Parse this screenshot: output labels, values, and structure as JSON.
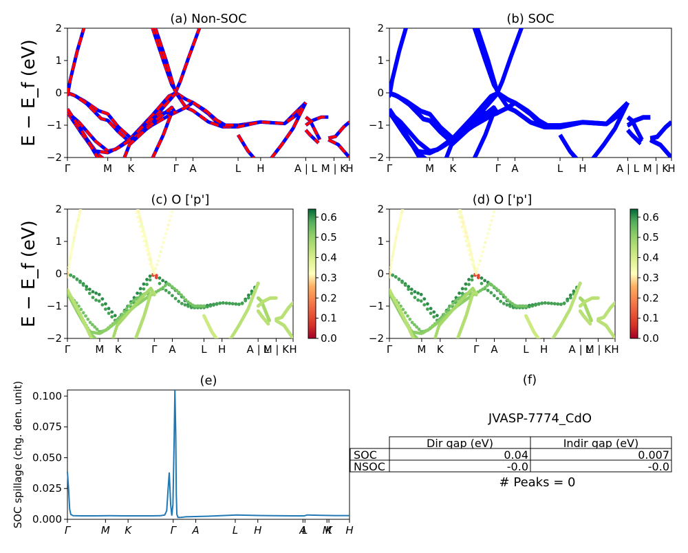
{
  "chart_data": [
    {
      "id": "a",
      "type": "line",
      "title": "(a) Non-SOC",
      "ylabel": "E − E_f (eV)",
      "ylim": [
        -2,
        2
      ],
      "y_ticks": [
        2,
        1,
        0,
        -1,
        -2
      ],
      "xlim": [
        0,
        1
      ],
      "x_ticks": [
        {
          "label": "Γ",
          "x": 0.0
        },
        {
          "label": "M",
          "x": 0.143
        },
        {
          "label": "K",
          "x": 0.225
        },
        {
          "label": "Γ",
          "x": 0.385
        },
        {
          "label": "A",
          "x": 0.445
        },
        {
          "label": "L",
          "x": 0.605
        },
        {
          "label": "H",
          "x": 0.685
        },
        {
          "label": "A | L",
          "x": 0.845
        },
        {
          "label": "M | K",
          "x": 0.945
        },
        {
          "label": "H",
          "x": 1.0
        }
      ],
      "series": [
        {
          "color": "#0000ff",
          "style": "solid",
          "bands": "up"
        },
        {
          "color": "#ff0000",
          "style": "dashed",
          "bands": "down"
        }
      ]
    },
    {
      "id": "b",
      "type": "line",
      "title": "(b) SOC",
      "ylim": [
        -2,
        2
      ],
      "y_ticks": [
        2,
        1,
        0,
        -1,
        -2
      ],
      "xlim": [
        0,
        1
      ],
      "x_ticks": [
        {
          "label": "Γ",
          "x": 0.0
        },
        {
          "label": "M",
          "x": 0.143
        },
        {
          "label": "K",
          "x": 0.225
        },
        {
          "label": "Γ",
          "x": 0.385
        },
        {
          "label": "A",
          "x": 0.445
        },
        {
          "label": "L",
          "x": 0.605
        },
        {
          "label": "H",
          "x": 0.685
        },
        {
          "label": "A | L",
          "x": 0.845
        },
        {
          "label": "M | K",
          "x": 0.945
        },
        {
          "label": "H",
          "x": 1.0
        }
      ],
      "series": [
        {
          "color": "#0000ff",
          "style": "solid"
        }
      ]
    },
    {
      "id": "c",
      "type": "scatter",
      "title": "(c)  O ['p']",
      "ylabel": "E − E_f (eV)",
      "ylim": [
        -2,
        2
      ],
      "y_ticks": [
        2,
        1,
        0,
        -1,
        -2
      ],
      "xlim": [
        0,
        1
      ],
      "x_ticks": [
        {
          "label": "Γ",
          "x": 0.0
        },
        {
          "label": "M",
          "x": 0.143
        },
        {
          "label": "K",
          "x": 0.225
        },
        {
          "label": "Γ",
          "x": 0.385
        },
        {
          "label": "A",
          "x": 0.465
        },
        {
          "label": "L",
          "x": 0.605
        },
        {
          "label": "H",
          "x": 0.685
        },
        {
          "label": "A | L",
          "x": 0.845
        },
        {
          "label": "M | K",
          "x": 0.925
        },
        {
          "label": "H",
          "x": 1.0
        }
      ],
      "colorbar": {
        "range": [
          0.0,
          0.64
        ],
        "ticks": [
          "0.0",
          "0.1",
          "0.2",
          "0.3",
          "0.4",
          "0.5",
          "0.6"
        ],
        "colormap": "RdYlGn"
      }
    },
    {
      "id": "d",
      "type": "scatter",
      "title": "(d) O ['p']",
      "ylim": [
        -2,
        2
      ],
      "y_ticks": [
        2,
        1,
        0,
        -1,
        -2
      ],
      "xlim": [
        0,
        1
      ],
      "x_ticks": [
        {
          "label": "Γ",
          "x": 0.0
        },
        {
          "label": "M",
          "x": 0.143
        },
        {
          "label": "K",
          "x": 0.225
        },
        {
          "label": "Γ",
          "x": 0.385
        },
        {
          "label": "A",
          "x": 0.465
        },
        {
          "label": "L",
          "x": 0.605
        },
        {
          "label": "H",
          "x": 0.685
        },
        {
          "label": "A | L",
          "x": 0.845
        },
        {
          "label": "M | K",
          "x": 0.925
        },
        {
          "label": "H",
          "x": 1.0
        }
      ],
      "colorbar": {
        "range": [
          0.0,
          0.64
        ],
        "ticks": [
          "0.0",
          "0.1",
          "0.2",
          "0.3",
          "0.4",
          "0.5",
          "0.6"
        ],
        "colormap": "RdYlGn"
      }
    },
    {
      "id": "e",
      "type": "line",
      "title": "(e)",
      "ylabel": "SOC spillage (chg. den. unit)",
      "ylim": [
        0,
        0.105
      ],
      "y_ticks": [
        "0.100",
        "0.075",
        "0.050",
        "0.025",
        "0.000"
      ],
      "xlim": [
        0,
        1
      ],
      "x_ticks": [
        {
          "label": "Γ",
          "x": 0.0
        },
        {
          "label": "M",
          "x": 0.135
        },
        {
          "label": "K",
          "x": 0.215
        },
        {
          "label": "Γ",
          "x": 0.375
        },
        {
          "label": "A",
          "x": 0.455
        },
        {
          "label": "L",
          "x": 0.595
        },
        {
          "label": "H",
          "x": 0.675
        },
        {
          "label": "A",
          "x": 0.835
        },
        {
          "label": "L",
          "x": 0.842
        },
        {
          "label": "M",
          "x": 0.92
        },
        {
          "label": "K",
          "x": 0.927
        },
        {
          "label": "H",
          "x": 1.0
        }
      ],
      "series": [
        {
          "color": "#1f77b4",
          "x": [
            0.0,
            0.004,
            0.008,
            0.012,
            0.02,
            0.05,
            0.1,
            0.15,
            0.2,
            0.25,
            0.3,
            0.33,
            0.345,
            0.352,
            0.357,
            0.361,
            0.366,
            0.37,
            0.374,
            0.378,
            0.381,
            0.384,
            0.386,
            0.388,
            0.392,
            0.4,
            0.42,
            0.5,
            0.6,
            0.7,
            0.8,
            0.84,
            0.85,
            0.9,
            0.95,
            1.0
          ],
          "y": [
            0.0385,
            0.025,
            0.008,
            0.004,
            0.0029,
            0.0028,
            0.0028,
            0.0029,
            0.0028,
            0.0028,
            0.0028,
            0.0029,
            0.0035,
            0.007,
            0.025,
            0.038,
            0.012,
            0.003,
            0.012,
            0.06,
            0.105,
            0.07,
            0.02,
            0.004,
            0.0015,
            0.0015,
            0.002,
            0.0025,
            0.0035,
            0.003,
            0.0028,
            0.0028,
            0.0035,
            0.0032,
            0.003,
            0.003
          ]
        }
      ]
    }
  ],
  "info_panel": {
    "title": "(f)",
    "material": "JVASP-7774_CdO",
    "table": {
      "headers": [
        "",
        "Dir gap (eV)",
        "Indir gap (eV)"
      ],
      "rows": [
        [
          "SOC",
          "0.04",
          "0.007"
        ],
        [
          "NSOC",
          "-0.0",
          "-0.0"
        ]
      ]
    },
    "peaks": "# Peaks = 0"
  },
  "colors": {
    "band_up": "#0000ff",
    "band_down": "#ff0000",
    "spillage": "#1f77b4"
  }
}
